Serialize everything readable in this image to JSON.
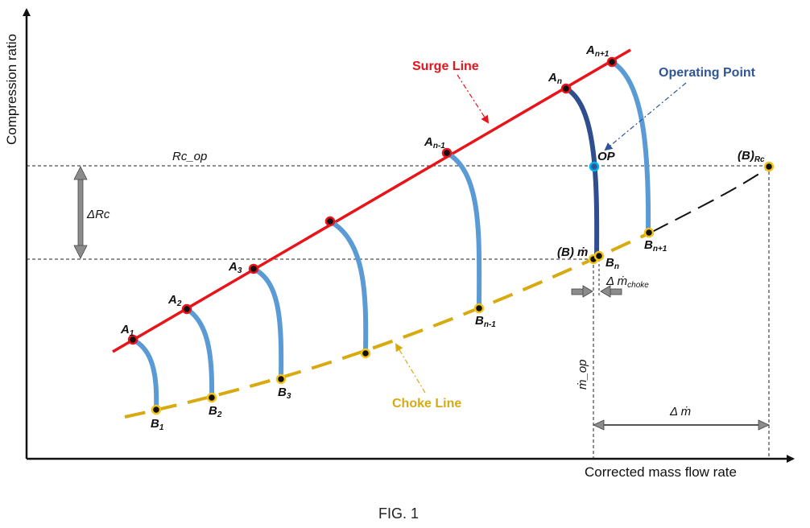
{
  "figure": {
    "caption": "FIG. 1",
    "axes": {
      "x_label": "Corrected mass flow rate",
      "y_label": "Compression ratio"
    },
    "lines": {
      "surge_label": "Surge Line",
      "choke_label": "Choke Line",
      "operating_point_label": "Operating Point"
    },
    "colors": {
      "surge": "#e8141b",
      "choke": "#d7ab0f",
      "speed_curve": "#5b9bd5",
      "operating_curve": "#2e4e8e",
      "operating_text": "#2f5597",
      "reference": "#222222",
      "arrow_fill": "#8c8c8c"
    },
    "surge_points": [
      {
        "base": "A",
        "sub": "1"
      },
      {
        "base": "A",
        "sub": "2"
      },
      {
        "base": "A",
        "sub": "3"
      },
      {
        "base": "",
        "sub": ""
      },
      {
        "base": "A",
        "sub": "n-1"
      },
      {
        "base": "A",
        "sub": "n"
      },
      {
        "base": "A",
        "sub": "n+1"
      }
    ],
    "choke_points": [
      {
        "base": "B",
        "sub": "1"
      },
      {
        "base": "B",
        "sub": "2"
      },
      {
        "base": "B",
        "sub": "3"
      },
      {
        "base": "",
        "sub": ""
      },
      {
        "base": "B",
        "sub": "n-1"
      },
      {
        "base": "B",
        "sub": "n"
      },
      {
        "base": "B",
        "sub": "n+1"
      }
    ],
    "annotations": {
      "rc_op": "Rc_op",
      "delta_rc": "ΔRc",
      "op": "OP",
      "b_rc_base": "(B)",
      "b_rc_sub": "Rc",
      "b_mdot": "(B) ṁ",
      "delta_mdot_choke_base": "Δ ṁ",
      "delta_mdot_choke_sub": "choke",
      "mdot_op": "ṁ_op",
      "delta_mdot": "Δ ṁ"
    }
  }
}
